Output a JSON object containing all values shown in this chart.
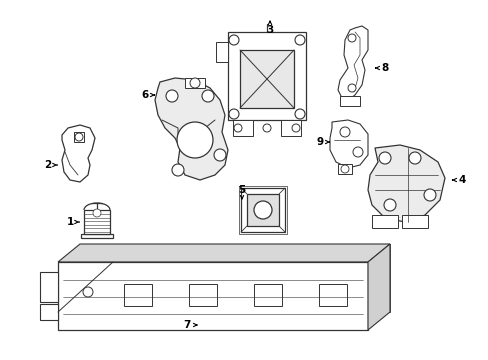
{
  "background_color": "#ffffff",
  "line_color": "#333333",
  "text_color": "#000000",
  "fig_width": 4.89,
  "fig_height": 3.6,
  "dpi": 100
}
